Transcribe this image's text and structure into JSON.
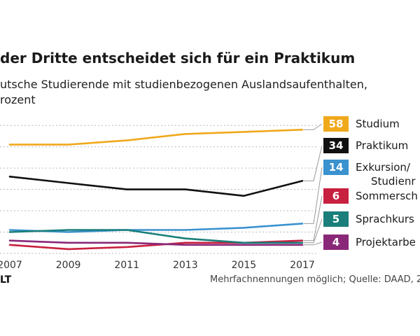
{
  "title": "der Dritte entscheidet sich für ein Praktikum",
  "subtitle_line1": "utsche Studierende mit studienbezogenen Auslandsaufenthalten,",
  "subtitle_line2": "rozent",
  "brand": "LT",
  "footer": "Mehrfachnennungen möglich; Quelle: DAAD, 2",
  "chart_data": {
    "type": "line",
    "x": [
      2007,
      2009,
      2011,
      2013,
      2015,
      2017
    ],
    "xticks": [
      "2007",
      "2009",
      "2011",
      "2013",
      "2015",
      "2017"
    ],
    "ylim": [
      0,
      65
    ],
    "grid": true,
    "series": [
      {
        "name": "Studium",
        "end_label": "58",
        "color": "#f0a81c",
        "values": [
          51,
          51,
          53,
          56,
          57,
          58
        ]
      },
      {
        "name": "Praktikum",
        "end_label": "34",
        "color": "#111111",
        "values": [
          36,
          33,
          30,
          30,
          27,
          34
        ]
      },
      {
        "name": "Exkursion/ Studienr",
        "end_label": "14",
        "color": "#3a92cf",
        "values": [
          11,
          10,
          11,
          11,
          12,
          14
        ]
      },
      {
        "name": "Sommersch",
        "end_label": "6",
        "color": "#c8203f",
        "values": [
          4,
          2,
          3,
          5,
          5,
          6
        ]
      },
      {
        "name": "Sprachkurs",
        "end_label": "5",
        "color": "#1a7f7a",
        "values": [
          10,
          11,
          11,
          7,
          5,
          5
        ]
      },
      {
        "name": "Projektarbe",
        "end_label": "4",
        "color": "#8a2878",
        "values": [
          6,
          5,
          5,
          4,
          4,
          4
        ]
      }
    ]
  }
}
